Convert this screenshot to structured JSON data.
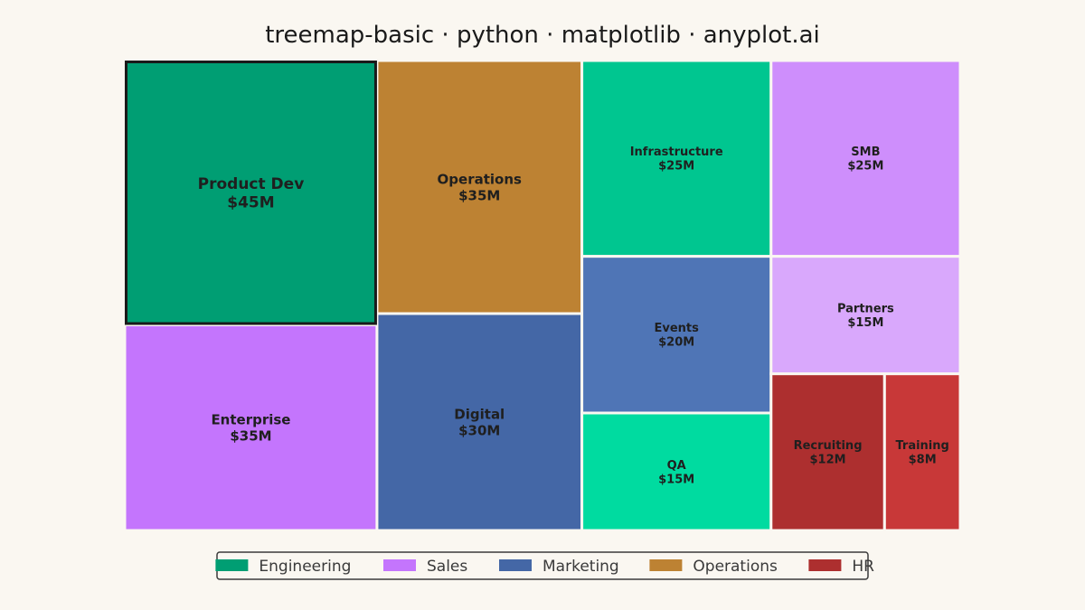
{
  "chart_data": {
    "type": "treemap",
    "title": "treemap-basic · python · matplotlib · anyplot.ai",
    "unit_prefix": "$",
    "unit_suffix": "M",
    "groups": [
      {
        "name": "Engineering",
        "color": "#009E73",
        "items": [
          {
            "label": "Product Dev",
            "value": 45,
            "color": "#009E73",
            "highlight": true
          },
          {
            "label": "Infrastructure",
            "value": 25,
            "color": "#00C690"
          },
          {
            "label": "QA",
            "value": 15,
            "color": "#00DBA0"
          }
        ]
      },
      {
        "name": "Sales",
        "color": "#C475FD",
        "items": [
          {
            "label": "Enterprise",
            "value": 35,
            "color": "#C475FD"
          },
          {
            "label": "SMB",
            "value": 25,
            "color": "#CE8EFC"
          },
          {
            "label": "Partners",
            "value": 15,
            "color": "#D9A8FC"
          }
        ]
      },
      {
        "name": "Marketing",
        "color": "#4467A6",
        "items": [
          {
            "label": "Digital",
            "value": 30,
            "color": "#4467A6"
          },
          {
            "label": "Events",
            "value": 20,
            "color": "#4F75B6"
          }
        ]
      },
      {
        "name": "Operations",
        "color": "#BD8233",
        "items": [
          {
            "label": "Operations",
            "value": 35,
            "color": "#BD8233"
          }
        ]
      },
      {
        "name": "HR",
        "color": "#AD2F2F",
        "items": [
          {
            "label": "Recruiting",
            "value": 12,
            "color": "#AD2F2F"
          },
          {
            "label": "Training",
            "value": 8,
            "color": "#C83838"
          }
        ]
      }
    ],
    "legend": {
      "position": "bottom-center"
    }
  }
}
